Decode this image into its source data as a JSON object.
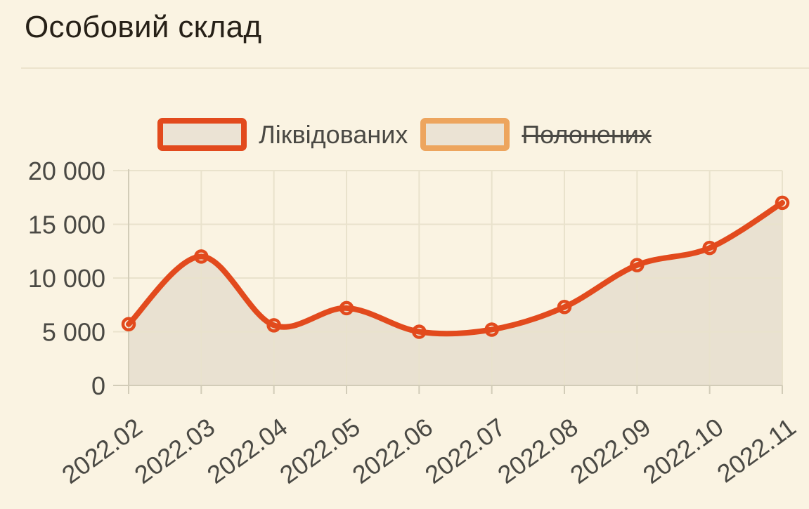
{
  "page": {
    "title": "Особовий склад"
  },
  "colors": {
    "background": "#faf3e2",
    "title_text": "#262017",
    "divider": "#ece3cd",
    "axis_text": "#4a4944",
    "grid_line": "#e9e2cc",
    "axis_line": "#d2ccb8",
    "series_liquidated": "#e24a1d",
    "series_captured": "#eda55e",
    "area_fill": "#e9e1d1",
    "legend_swatch_fill": "#ebe3d4"
  },
  "legend": {
    "items": [
      {
        "label": "Ліквідованих",
        "color": "#e24a1d",
        "active": true
      },
      {
        "label": "Полонених",
        "color": "#eda55e",
        "active": false
      }
    ]
  },
  "chart_data": {
    "type": "area",
    "title": "Особовий склад",
    "x": [
      "2022.02",
      "2022.03",
      "2022.04",
      "2022.05",
      "2022.06",
      "2022.07",
      "2022.08",
      "2022.09",
      "2022.10",
      "2022.11"
    ],
    "series": [
      {
        "name": "Ліквідованих",
        "color": "#e24a1d",
        "visible": true,
        "values": [
          5700,
          12000,
          5600,
          7200,
          5000,
          5200,
          7300,
          11200,
          12800,
          17000
        ]
      },
      {
        "name": "Полонених",
        "color": "#eda55e",
        "visible": false,
        "values": []
      }
    ],
    "xlabel": "",
    "ylabel": "",
    "ylim": [
      0,
      20000
    ],
    "yticks": [
      0,
      5000,
      10000,
      15000,
      20000
    ],
    "ytick_labels": [
      "0",
      "5 000",
      "10 000",
      "15 000",
      "20 000"
    ],
    "grid": true,
    "smooth": true,
    "legend_position": "top",
    "x_label_rotation": -36
  }
}
